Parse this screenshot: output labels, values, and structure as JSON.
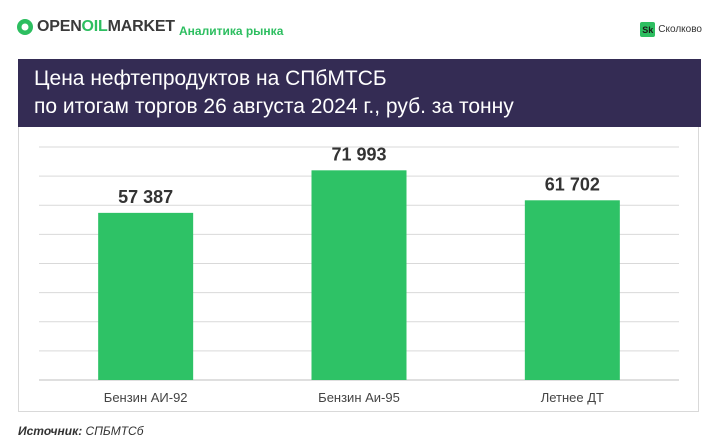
{
  "header": {
    "brand_part1": "OPEN",
    "brand_part2": "OIL",
    "brand_part3": "MARKET",
    "tagline": "Аналитика рынка",
    "partner_badge": "Sk",
    "partner_name": "Сколково"
  },
  "colors": {
    "accent": "#2dbe60",
    "title_band": "#342c54",
    "bar": "#2ec266"
  },
  "chart_data": {
    "type": "bar",
    "title_line1": "Цена нефтепродуктов на СПбМТСБ",
    "title_line2": "по итогам торгов 26 августа 2024 г., руб. за тонну",
    "categories": [
      "Бензин АИ-92",
      "Бензин Аи-95",
      "Летнее ДТ"
    ],
    "values": [
      57387,
      71993,
      61702
    ],
    "value_labels": [
      "57 387",
      "71 993",
      "61 702"
    ],
    "xlabel": "",
    "ylabel": "",
    "ylim": [
      0,
      80000
    ],
    "grid": true
  },
  "source": {
    "label": "Источник:",
    "value": "СПБМТСб"
  }
}
